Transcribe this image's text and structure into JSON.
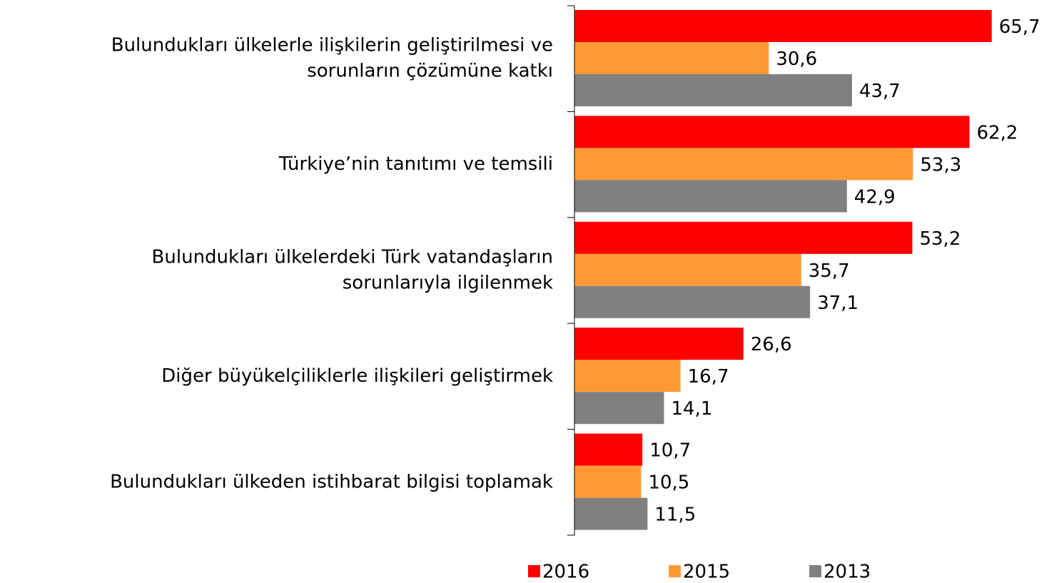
{
  "chart_data": {
    "type": "bar",
    "orientation": "horizontal",
    "categories": [
      [
        "Bulundukları ülkelerle ilişkilerin geliştirilmesi ve",
        "sorunların çözümüne katkı"
      ],
      [
        "Türkiye’nin tanıtımı ve temsili"
      ],
      [
        "Bulundukları ülkelerdeki Türk vatandaşların",
        "sorunlarıyla ilgilenmek"
      ],
      [
        "Diğer büyükelçiliklerle ilişkileri geliştirmek"
      ],
      [
        "Bulundukları ülkeden istihbarat bilgisi toplamak"
      ]
    ],
    "series": [
      {
        "name": "2016",
        "color": "#ff0000",
        "values": [
          65.7,
          62.2,
          53.2,
          26.6,
          10.7
        ],
        "value_labels": [
          "65,7",
          "62,2",
          "53,2",
          "26,6",
          "10,7"
        ]
      },
      {
        "name": "2015",
        "color": "#ff9933",
        "values": [
          30.6,
          53.3,
          35.7,
          16.7,
          10.5
        ],
        "value_labels": [
          "30,6",
          "53,3",
          "35,7",
          "16,7",
          "10,5"
        ]
      },
      {
        "name": "2013",
        "color": "#808080",
        "values": [
          43.7,
          42.9,
          37.1,
          14.1,
          11.5
        ],
        "value_labels": [
          "43,7",
          "42,9",
          "37,1",
          "14,1",
          "11,5"
        ]
      }
    ],
    "legend": "bottom"
  }
}
